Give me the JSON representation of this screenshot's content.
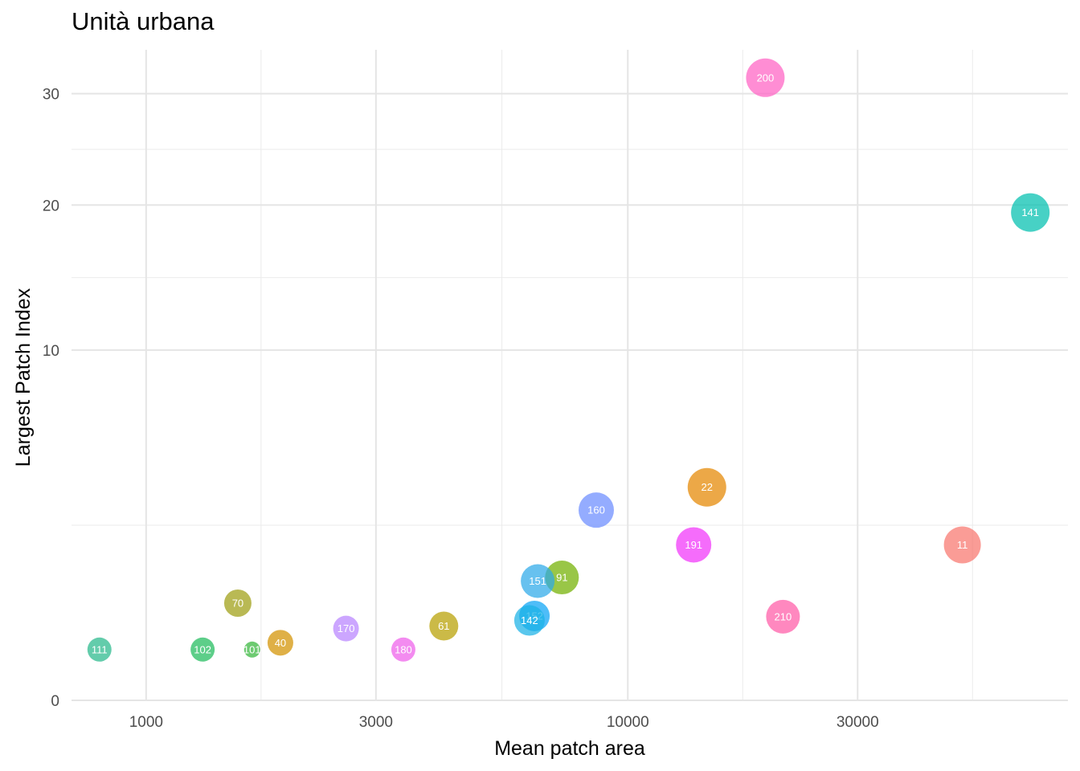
{
  "chart_data": {
    "type": "scatter",
    "title": "Unità urbana",
    "xlabel": "Mean patch area",
    "ylabel": "Largest Patch Index",
    "x_scale": "log10",
    "y_scale": "sqrt",
    "xlim": [
      700,
      82000
    ],
    "ylim": [
      0,
      34.5
    ],
    "x_ticks": [
      1000,
      3000,
      10000,
      30000
    ],
    "y_ticks": [
      0,
      10,
      20,
      30
    ],
    "grid": true,
    "legend": "none",
    "points": [
      {
        "label": "200",
        "x": 19300,
        "y": 31.6,
        "size": 24,
        "color": "#FF61C3"
      },
      {
        "label": "141",
        "x": 68500,
        "y": 19.4,
        "size": 24,
        "color": "#00BFAE"
      },
      {
        "label": "22",
        "x": 14600,
        "y": 3.7,
        "size": 24,
        "color": "#E58700"
      },
      {
        "label": "160",
        "x": 8600,
        "y": 2.95,
        "size": 22,
        "color": "#6B8CFF"
      },
      {
        "label": "191",
        "x": 13700,
        "y": 1.97,
        "size": 22,
        "color": "#F133F9"
      },
      {
        "label": "11",
        "x": 49500,
        "y": 1.97,
        "size": 23,
        "color": "#F8766D"
      },
      {
        "label": "91",
        "x": 7300,
        "y": 1.23,
        "size": 21,
        "color": "#72B000"
      },
      {
        "label": "151",
        "x": 6500,
        "y": 1.16,
        "size": 21,
        "color": "#2DA9E9"
      },
      {
        "label": "70",
        "x": 1550,
        "y": 0.77,
        "size": 17,
        "color": "#9E9E12"
      },
      {
        "label": "210",
        "x": 21000,
        "y": 0.57,
        "size": 21,
        "color": "#FF5AA6"
      },
      {
        "label": "152",
        "x": 6400,
        "y": 0.58,
        "size": 19,
        "color": "#0AA3F5"
      },
      {
        "label": "142",
        "x": 6250,
        "y": 0.52,
        "size": 19,
        "color": "#1AB2E6"
      },
      {
        "label": "61",
        "x": 4150,
        "y": 0.45,
        "size": 18,
        "color": "#B79F00"
      },
      {
        "label": "170",
        "x": 2600,
        "y": 0.42,
        "size": 16,
        "color": "#B983FF"
      },
      {
        "label": "40",
        "x": 1900,
        "y": 0.27,
        "size": 16,
        "color": "#D39200"
      },
      {
        "label": "111",
        "x": 800,
        "y": 0.21,
        "size": 15,
        "color": "#27B98A"
      },
      {
        "label": "102",
        "x": 1310,
        "y": 0.21,
        "size": 15,
        "color": "#1EBB5B"
      },
      {
        "label": "101",
        "x": 1660,
        "y": 0.21,
        "size": 10,
        "color": "#35B53A"
      },
      {
        "label": "180",
        "x": 3420,
        "y": 0.21,
        "size": 15,
        "color": "#EE5EEA"
      }
    ]
  }
}
